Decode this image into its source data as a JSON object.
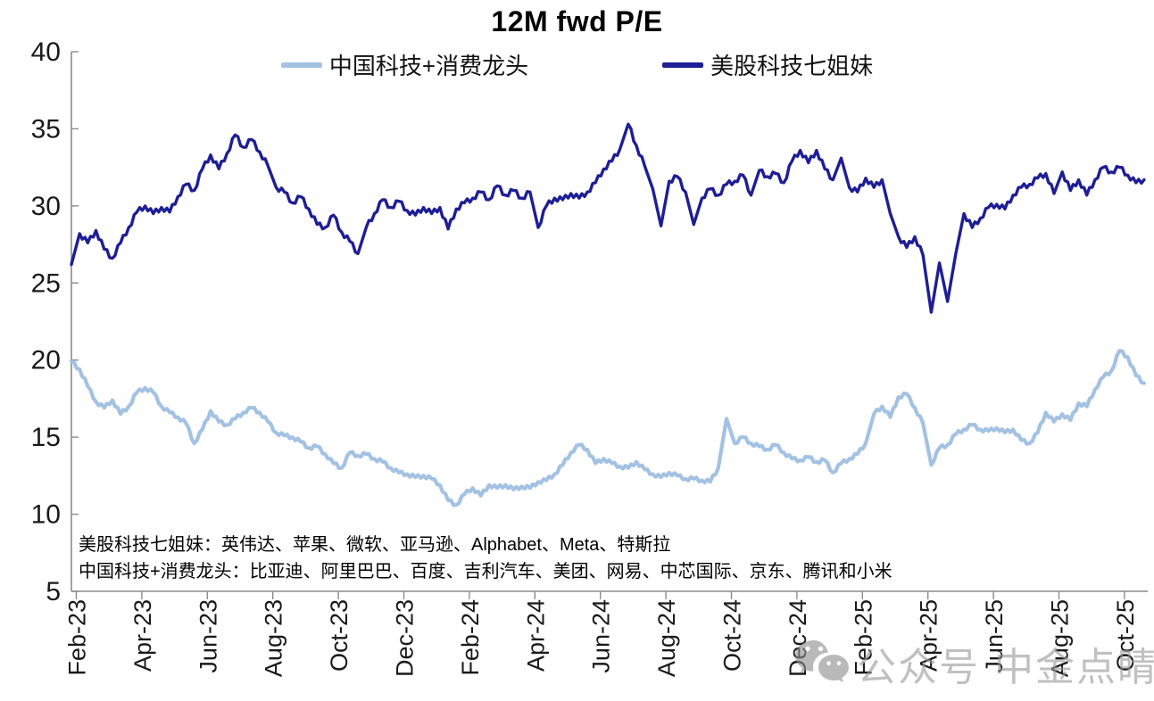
{
  "title": "12M fwd P/E",
  "legend": {
    "cn": {
      "label": "中国科技+消费龙头",
      "color": "#a3c2e3"
    },
    "us": {
      "label": "美股科技七姐妹",
      "color": "#1e1e96"
    }
  },
  "footnotes": [
    "美股科技七姐妹：英伟达、苹果、微软、亚马逊、Alphabet、Meta、特斯拉",
    "中国科技+消费龙头：比亚迪、阿里巴巴、百度、吉利汽车、美团、网易、中芯国际、京东、腾讯和小米"
  ],
  "watermark": {
    "icon": "wechat-icon",
    "text_left": "公众号",
    "text_right": "中金点睛"
  },
  "colors": {
    "cn_line": "#a3c2e3",
    "us_line": "#1e1e96",
    "axis": "#8c8c8c",
    "tick_label": "#1a1a1a",
    "watermark_gray": "#9b9b9b"
  },
  "chart_data": {
    "type": "line",
    "title": "12M fwd P/E",
    "xlabel": "",
    "ylabel": "",
    "ylim": [
      5,
      40
    ],
    "y_ticks": [
      5,
      10,
      15,
      20,
      25,
      30,
      35,
      40
    ],
    "x_unit": "months since Feb-2023, tick every 2 months",
    "x_tick_labels": [
      "Feb-23",
      "Apr-23",
      "Jun-23",
      "Aug-23",
      "Oct-23",
      "Dec-23",
      "Feb-24",
      "Apr-24",
      "Jun-24",
      "Aug-24",
      "Oct-24",
      "Dec-24",
      "Feb-25",
      "Apr-25",
      "Jun-25",
      "Aug-25",
      "Oct-25"
    ],
    "grid": false,
    "legend_position": "top",
    "series": [
      {
        "name": "中国科技+消费龙头",
        "color": "#a3c2e3",
        "start": 0,
        "step": 0.25,
        "values": [
          19.9,
          19.4,
          18.3,
          17.3,
          16.9,
          17.4,
          16.5,
          17.0,
          17.9,
          18.2,
          17.9,
          17.0,
          16.6,
          16.3,
          15.9,
          14.6,
          15.5,
          16.7,
          16.0,
          15.8,
          16.2,
          16.6,
          16.9,
          16.6,
          16.0,
          15.3,
          15.1,
          15.0,
          14.7,
          14.3,
          14.4,
          13.9,
          13.3,
          13.0,
          14.0,
          13.8,
          13.9,
          13.6,
          13.4,
          13.0,
          12.7,
          12.6,
          12.4,
          12.5,
          12.3,
          11.9,
          10.9,
          10.6,
          11.3,
          11.7,
          11.2,
          11.9,
          11.7,
          11.9,
          11.6,
          11.8,
          11.7,
          12.1,
          12.2,
          12.6,
          13.2,
          14.0,
          14.5,
          14.2,
          13.3,
          13.6,
          13.3,
          13.1,
          13.0,
          13.4,
          12.9,
          12.6,
          12.4,
          12.7,
          12.5,
          12.3,
          12.3,
          12.2,
          12.1,
          13.0,
          16.2,
          14.6,
          15.0,
          14.6,
          14.4,
          14.2,
          14.5,
          14.0,
          13.6,
          13.5,
          13.7,
          13.4,
          13.5,
          12.7,
          13.3,
          13.6,
          13.9,
          14.6,
          16.5,
          17.0,
          16.3,
          17.6,
          17.8,
          16.9,
          15.9,
          13.2,
          14.3,
          14.5,
          15.2,
          15.5,
          15.8,
          15.5,
          15.4,
          15.6,
          15.3,
          15.5,
          14.8,
          14.6,
          15.3,
          16.6,
          16.0,
          16.5,
          16.1,
          17.2,
          17.0,
          18.1,
          18.9,
          19.3,
          20.6,
          20.2,
          19.0,
          18.5
        ]
      },
      {
        "name": "美股科技七姐妹",
        "color": "#1e1e96",
        "start": 0,
        "step": 0.25,
        "values": [
          26.2,
          28.2,
          27.6,
          28.4,
          27.2,
          26.6,
          27.6,
          28.6,
          29.6,
          30.0,
          29.5,
          29.9,
          29.6,
          30.6,
          31.4,
          31.0,
          32.4,
          33.3,
          32.4,
          33.4,
          34.6,
          33.8,
          34.3,
          33.5,
          32.6,
          31.2,
          30.9,
          30.2,
          30.6,
          29.8,
          28.8,
          28.6,
          29.4,
          28.3,
          27.7,
          26.9,
          28.6,
          29.5,
          30.4,
          29.9,
          30.3,
          29.7,
          29.4,
          29.9,
          29.5,
          29.9,
          28.5,
          29.8,
          30.2,
          30.5,
          30.9,
          30.4,
          31.3,
          30.7,
          31.0,
          30.5,
          30.9,
          28.6,
          30.0,
          30.5,
          30.4,
          30.8,
          30.5,
          30.9,
          31.5,
          32.4,
          32.9,
          33.7,
          35.3,
          33.9,
          32.6,
          31.1,
          28.7,
          31.6,
          31.9,
          30.9,
          28.8,
          30.5,
          31.1,
          30.7,
          31.4,
          31.6,
          32.0,
          30.7,
          32.3,
          31.9,
          32.1,
          31.5,
          32.9,
          33.6,
          32.8,
          33.6,
          32.4,
          31.7,
          33.1,
          31.2,
          30.9,
          31.8,
          31.2,
          31.7,
          29.5,
          28.0,
          27.3,
          28.0,
          26.8,
          23.1,
          26.3,
          23.8,
          26.9,
          29.5,
          28.6,
          29.2,
          29.9,
          30.1,
          29.8,
          30.7,
          31.2,
          31.4,
          31.8,
          32.1,
          30.8,
          32.2,
          31.0,
          31.7,
          30.7,
          31.7,
          32.5,
          32.2,
          32.5,
          32.0,
          31.5,
          31.7
        ]
      }
    ]
  }
}
